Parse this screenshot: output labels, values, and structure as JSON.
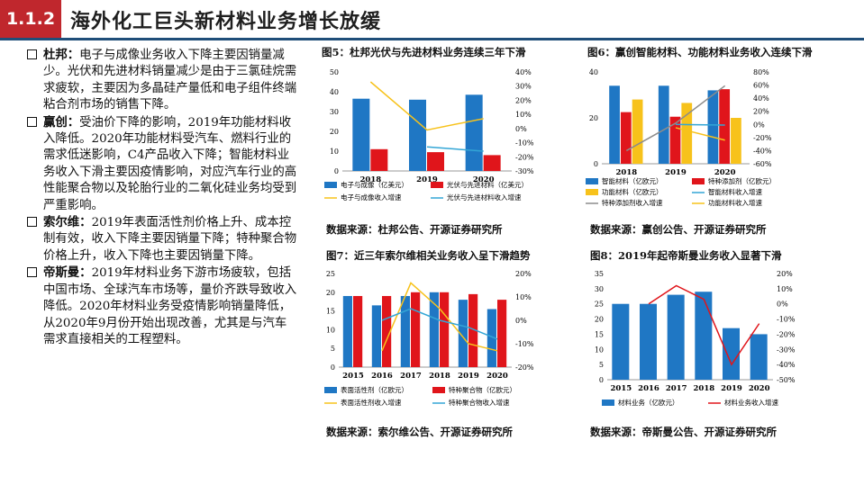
{
  "header": {
    "section": "1.1.2",
    "title": "海外化工巨头新材料业务增长放缓"
  },
  "paragraphs": [
    {
      "name": "杜邦：",
      "text": "电子与成像业务收入下降主要因销量减少。光伏和先进材料销量减少是由于三氯硅烷需求疲软，主要因为多晶硅产量低和电子组件终端粘合剂市场的销售下降。"
    },
    {
      "name": "赢创：",
      "text": "受油价下降的影响，2019年功能材料收入降低。2020年功能材料受汽车、燃料行业的需求低迷影响，C4产品收入下降；智能材料业务收入下滑主要因疫情影响，对应汽车行业的高性能聚合物以及轮胎行业的二氧化硅业务均受到严重影响。"
    },
    {
      "name": "索尔维：",
      "text": "2019年表面活性剂价格上升、成本控制有效，收入下降主要因销量下降；特种聚合物价格上升，收入下降也主要因销量下降。"
    },
    {
      "name": "帝斯曼：",
      "text": "2019年材料业务下游市场疲软，包括中国市场、全球汽车市场等，量价齐跌导致收入降低。2020年材料业务受疫情影响销量降低，从2020年9月份开始出现改善，尤其是与汽车需求直接相关的工程塑料。"
    }
  ],
  "colors": {
    "blue": "#1f77c4",
    "red": "#e0151b",
    "yellow": "#f7c21b",
    "cyan": "#33a6d6",
    "gray": "#8c8c8c",
    "hdr_red": "#c0272d",
    "hdr_blue": "#1f4e79"
  },
  "panels": {
    "fig5": {
      "title": "图5：杜邦光伏与先进材料业务连续三年下滑",
      "source": "数据来源：杜邦公告、开源证券研究所"
    },
    "fig6": {
      "title": "图6：赢创智能材料、功能材料业务收入连续下滑",
      "source": "数据来源：赢创公告、开源证券研究所"
    },
    "fig7": {
      "title": "图7：近三年索尔维相关业务收入呈下滑趋势",
      "source": "数据来源：索尔维公告、开源证券研究所"
    },
    "fig8": {
      "title": "图8：2019年起帝斯曼业务收入显著下滑",
      "source": "数据来源：帝斯曼公告、开源证券研究所"
    }
  },
  "chart_data": [
    {
      "id": "fig5",
      "type": "bar",
      "categories": [
        "2018",
        "2019",
        "2020"
      ],
      "ylim": [
        0,
        50
      ],
      "yticks": [
        0,
        10,
        20,
        30,
        40,
        50
      ],
      "y2lim": [
        -30,
        40
      ],
      "y2ticks": [
        "-30%",
        "-20%",
        "-10%",
        "0%",
        "10%",
        "20%",
        "30%",
        "40%"
      ],
      "series": [
        {
          "name": "电子与成像（亿美元）",
          "kind": "bar",
          "color": "#1f77c4",
          "values": [
            36.5,
            36,
            38.5
          ]
        },
        {
          "name": "光伏与先进材料（亿美元）",
          "kind": "bar",
          "color": "#e0151b",
          "values": [
            11,
            9.5,
            8
          ]
        },
        {
          "name": "电子与成像收入增速",
          "kind": "line",
          "color": "#f7c21b",
          "values": [
            33,
            -1,
            7
          ]
        },
        {
          "name": "光伏与先进材料收入增速",
          "kind": "line",
          "color": "#33a6d6",
          "values": [
            null,
            -13,
            -16
          ]
        }
      ]
    },
    {
      "id": "fig6",
      "type": "bar",
      "categories": [
        "2018",
        "2019",
        "2020"
      ],
      "ylim": [
        0,
        40
      ],
      "yticks": [
        0,
        20,
        40
      ],
      "y2lim": [
        -60,
        80
      ],
      "y2ticks": [
        "-60%",
        "-40%",
        "-20%",
        "0%",
        "20%",
        "40%",
        "60%",
        "80%"
      ],
      "series": [
        {
          "name": "智能材料（亿欧元）",
          "kind": "bar",
          "color": "#1f77c4",
          "values": [
            34,
            34,
            32
          ]
        },
        {
          "name": "特种添加剂（亿欧元）",
          "kind": "bar",
          "color": "#e0151b",
          "values": [
            22.5,
            20.5,
            32.5
          ]
        },
        {
          "name": "功能材料（亿欧元）",
          "kind": "bar",
          "color": "#f7c21b",
          "values": [
            28,
            26.5,
            20
          ]
        },
        {
          "name": "智能材料收入增速",
          "kind": "line",
          "color": "#33a6d6",
          "values": [
            null,
            0,
            -1
          ]
        },
        {
          "name": "特种添加剂收入增速",
          "kind": "line",
          "color": "#8c8c8c",
          "values": [
            -40,
            2,
            59
          ]
        },
        {
          "name": "功能材料收入增速",
          "kind": "line",
          "color": "#f7c21b",
          "values": [
            null,
            -5,
            -24
          ]
        }
      ]
    },
    {
      "id": "fig7",
      "type": "bar",
      "categories": [
        "2015",
        "2016",
        "2017",
        "2018",
        "2019",
        "2020"
      ],
      "ylim": [
        0,
        25
      ],
      "yticks": [
        0,
        5,
        10,
        15,
        20,
        25
      ],
      "y2lim": [
        -20,
        20
      ],
      "y2ticks": [
        "-20%",
        "-10%",
        "0%",
        "10%",
        "20%"
      ],
      "series": [
        {
          "name": "表面活性剂（亿欧元）",
          "kind": "bar",
          "color": "#1f77c4",
          "values": [
            19,
            16.5,
            19,
            20,
            18,
            15.5
          ]
        },
        {
          "name": "特种聚合物（亿欧元）",
          "kind": "bar",
          "color": "#e0151b",
          "values": [
            19,
            19,
            20,
            20,
            19.5,
            18
          ]
        },
        {
          "name": "表面活性剂收入增速",
          "kind": "line",
          "color": "#f7c21b",
          "values": [
            null,
            -13,
            16,
            5,
            -10,
            -13
          ]
        },
        {
          "name": "特种聚合物收入增速",
          "kind": "line",
          "color": "#33a6d6",
          "values": [
            null,
            0,
            5,
            0,
            -3,
            -8
          ]
        }
      ]
    },
    {
      "id": "fig8",
      "type": "bar",
      "categories": [
        "2015",
        "2016",
        "2017",
        "2018",
        "2019",
        "2020"
      ],
      "ylim": [
        0,
        35
      ],
      "yticks": [
        0,
        5,
        10,
        15,
        20,
        25,
        30,
        35
      ],
      "y2lim": [
        -50,
        20
      ],
      "y2ticks": [
        "-50%",
        "-40%",
        "-30%",
        "-20%",
        "-10%",
        "0%",
        "10%",
        "20%"
      ],
      "series": [
        {
          "name": "材料业务（亿欧元）",
          "kind": "bar",
          "color": "#1f77c4",
          "values": [
            25,
            25,
            28,
            29,
            17,
            15
          ]
        },
        {
          "name": "材料业务收入增速",
          "kind": "line",
          "color": "#e0151b",
          "values": [
            null,
            0,
            12,
            3,
            -40,
            -13
          ]
        }
      ]
    }
  ]
}
